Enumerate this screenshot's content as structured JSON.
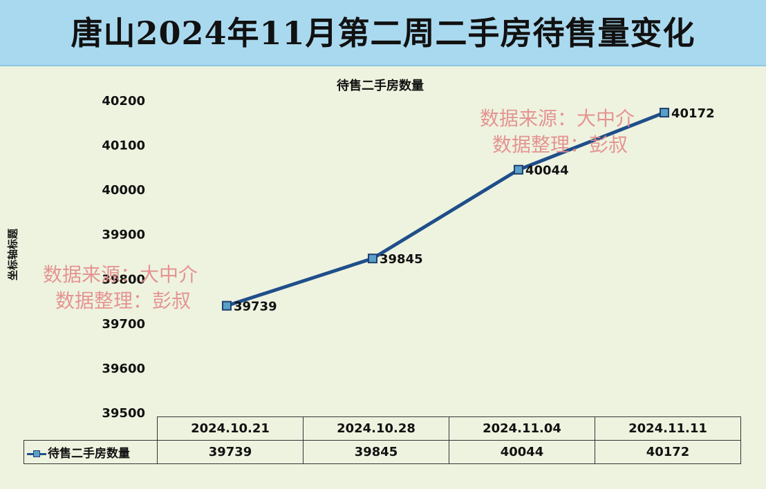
{
  "banner": {
    "title": "唐山2024年11月第二周二手房待售量变化"
  },
  "watermarks": [
    {
      "line1": "数据来源：大中介",
      "line2": "数据整理：彭叔"
    },
    {
      "line1": "数据来源：大中介",
      "line2": "数据整理：彭叔"
    }
  ],
  "colors": {
    "background": "#eef3df",
    "banner": "#a9d9ef",
    "series_line": "#1f4e8a",
    "marker_fill": "#5aa0c8",
    "watermark": "#e48a8a"
  },
  "chart_data": {
    "type": "line",
    "title": "待售二手房数量",
    "ylabel": "坐标轴标题",
    "xlabel": "",
    "categories": [
      "2024.10.21",
      "2024.10.28",
      "2024.11.04",
      "2024.11.11"
    ],
    "series": [
      {
        "name": "待售二手房数量",
        "values": [
          39739,
          39845,
          40044,
          40172
        ]
      }
    ],
    "ylim": [
      39500,
      40200
    ],
    "yticks": [
      39500,
      39600,
      39700,
      39800,
      39900,
      40000,
      40100,
      40200
    ],
    "grid": false,
    "legend": "data-table",
    "data_labels": true
  }
}
